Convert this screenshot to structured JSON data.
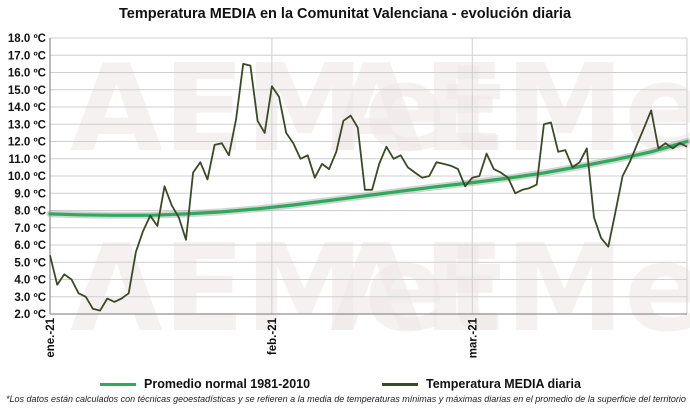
{
  "title": "Temperatura MEDIA en la Comunitat Valenciana - evolución diaria",
  "footnote": "*Los datos están calculados con técnicas geoestadísticas y se refieren a la media de temperaturas mínimas y máximas diarias en el promedio de la superficie del territorio",
  "watermark": "AEMet",
  "legend": {
    "normal_label": "Promedio normal 1981-2010",
    "daily_label": "Temperatura MEDIA diaria"
  },
  "colors": {
    "normal": "#2eaa5c",
    "normal_shadow": "#9aa39d",
    "daily": "#3b4a26",
    "grid": "#cfcfcf",
    "watermark": "#f0e8e8"
  },
  "chart_data": {
    "type": "line",
    "title": "Temperatura MEDIA en la Comunitat Valenciana - evolución diaria",
    "xlabel": "",
    "ylabel": "",
    "ylim": [
      2.0,
      18.0
    ],
    "y_tick_labels": [
      "2.0 ºC",
      "3.0 ºC",
      "4.0 ºC",
      "5.0 ºC",
      "6.0 ºC",
      "7.0 ºC",
      "8.0 ºC",
      "9.0 ºC",
      "10.0 ºC",
      "11.0 ºC",
      "12.0 ºC",
      "13.0 ºC",
      "14.0 ºC",
      "15.0 ºC",
      "16.0 ºC",
      "17.0 ºC",
      "18.0 ºC"
    ],
    "x_tick_labels": [
      {
        "label": "ene.-21",
        "day": 1
      },
      {
        "label": "feb.-21",
        "day": 32
      },
      {
        "label": "mar.-21",
        "day": 60
      }
    ],
    "xlim": [
      1,
      90
    ],
    "grid": true,
    "legend_position": "bottom",
    "series": [
      {
        "name": "Promedio normal 1981-2010",
        "x": [
          1,
          5,
          10,
          15,
          20,
          25,
          30,
          35,
          40,
          45,
          50,
          55,
          60,
          65,
          70,
          75,
          80,
          85,
          90
        ],
        "values": [
          7.8,
          7.75,
          7.72,
          7.72,
          7.8,
          7.92,
          8.1,
          8.32,
          8.58,
          8.85,
          9.12,
          9.38,
          9.62,
          9.88,
          10.18,
          10.55,
          10.95,
          11.4,
          12.0
        ]
      },
      {
        "name": "Temperatura MEDIA diaria",
        "x": [
          1,
          2,
          3,
          4,
          5,
          6,
          7,
          8,
          9,
          10,
          11,
          12,
          13,
          14,
          15,
          16,
          17,
          18,
          19,
          20,
          21,
          22,
          23,
          24,
          25,
          26,
          27,
          28,
          29,
          30,
          31,
          32,
          33,
          34,
          35,
          36,
          37,
          38,
          39,
          40,
          41,
          42,
          43,
          44,
          45,
          46,
          47,
          48,
          49,
          50,
          51,
          52,
          53,
          54,
          55,
          56,
          57,
          58,
          59,
          60,
          61,
          62,
          63,
          64,
          65,
          66,
          67,
          68,
          69,
          70,
          71,
          72,
          73,
          74,
          75,
          76,
          77,
          78,
          79,
          80,
          81,
          82,
          83,
          84,
          85,
          86,
          87,
          88,
          89,
          90
        ],
        "values": [
          5.4,
          3.7,
          4.3,
          4.0,
          3.2,
          3.0,
          2.3,
          2.2,
          2.9,
          2.7,
          2.9,
          3.2,
          5.6,
          6.8,
          7.7,
          7.1,
          9.4,
          8.3,
          7.6,
          6.3,
          10.2,
          10.8,
          9.8,
          11.8,
          11.9,
          11.2,
          13.3,
          16.5,
          16.4,
          13.2,
          12.5,
          15.2,
          14.6,
          12.5,
          11.9,
          11.0,
          11.2,
          9.9,
          10.7,
          10.4,
          11.4,
          13.2,
          13.5,
          12.8,
          9.2,
          9.2,
          10.7,
          11.7,
          11.0,
          11.2,
          10.5,
          10.2,
          9.9,
          10.0,
          10.8,
          10.7,
          10.6,
          10.4,
          9.4,
          9.9,
          10.0,
          11.3,
          10.4,
          10.2,
          9.9,
          9.0,
          9.2,
          9.3,
          9.5,
          13.0,
          13.1,
          11.4,
          11.5,
          10.5,
          10.8,
          11.6,
          7.6,
          6.4,
          5.9,
          7.9,
          10.0,
          10.8,
          11.8,
          12.8,
          13.8,
          11.6,
          11.9,
          11.6,
          11.9,
          11.7
        ]
      }
    ]
  }
}
